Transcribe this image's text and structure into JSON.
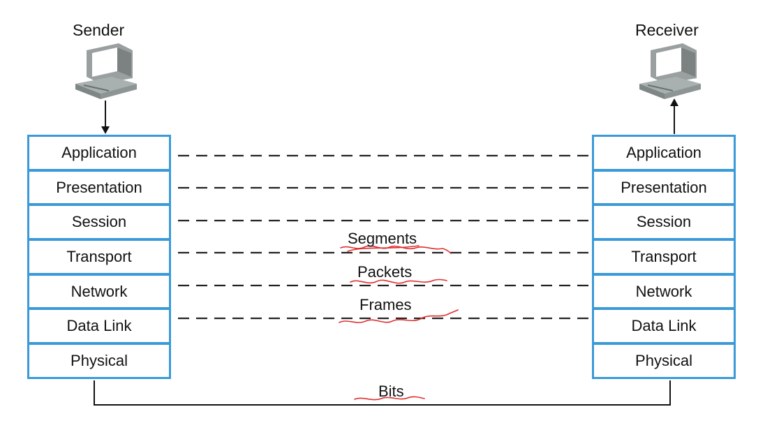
{
  "sender": {
    "label": "Sender"
  },
  "receiver": {
    "label": "Receiver"
  },
  "layers": [
    "Application",
    "Presentation",
    "Session",
    "Transport",
    "Network",
    "Data Link",
    "Physical"
  ],
  "units": {
    "segments": "Segments",
    "packets": "Packets",
    "frames": "Frames",
    "bits": "Bits"
  },
  "colors": {
    "stack_border": "#3a9ad9",
    "link_line": "#222222",
    "annotation": "#e03030"
  },
  "icons": [
    "computer-icon",
    "arrow-down-icon",
    "arrow-up-icon"
  ]
}
